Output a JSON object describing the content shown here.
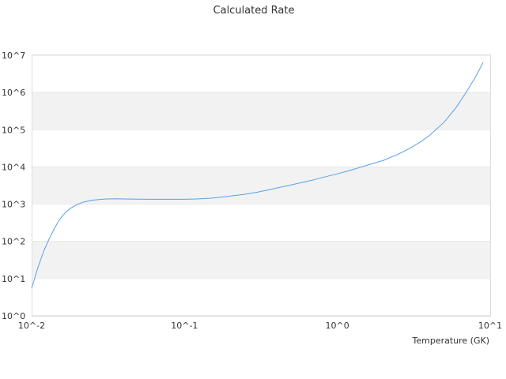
{
  "chart_data": {
    "type": "line",
    "title": "Calculated Rate",
    "xlabel": "Temperature (GK)",
    "ylabel": "",
    "x_scale": "log",
    "y_scale": "log",
    "xlim": [
      0.01,
      10
    ],
    "ylim": [
      1,
      10000000
    ],
    "x_ticks": [
      {
        "value": 0.01,
        "label": "10^-2"
      },
      {
        "value": 0.1,
        "label": "10^-1"
      },
      {
        "value": 1,
        "label": "10^0"
      },
      {
        "value": 10,
        "label": "10^1"
      }
    ],
    "y_ticks": [
      {
        "value": 1,
        "base": "10",
        "exp": "0"
      },
      {
        "value": 10,
        "base": "10",
        "exp": "1"
      },
      {
        "value": 100,
        "base": "10",
        "exp": "2"
      },
      {
        "value": 1000,
        "base": "10",
        "exp": "3"
      },
      {
        "value": 10000,
        "base": "10",
        "exp": "4"
      },
      {
        "value": 100000,
        "base": "10",
        "exp": "5"
      },
      {
        "value": 1000000,
        "base": "10",
        "exp": "6"
      },
      {
        "value": 10000000,
        "base": "10",
        "exp": "7"
      }
    ],
    "grid": "alternating horizontal bands",
    "colors": {
      "line": "#5aa0e6",
      "band": "#f2f2f2",
      "axis": "#cccccc"
    },
    "series": [
      {
        "x": [
          0.01,
          0.011,
          0.012,
          0.013,
          0.014,
          0.015,
          0.016,
          0.017,
          0.018,
          0.02,
          0.022,
          0.025,
          0.03,
          0.035,
          0.04,
          0.045,
          0.05,
          0.06,
          0.07,
          0.08,
          0.1,
          0.12,
          0.15,
          0.2,
          0.25,
          0.3,
          0.4,
          0.5,
          0.6,
          0.7,
          0.8,
          1.0,
          1.2,
          1.5,
          2.0,
          2.5,
          3.0,
          3.5,
          4.0,
          5.0,
          6.0,
          7.0,
          8.0,
          9.0
        ],
        "y": [
          5.5,
          20,
          55,
          115,
          210,
          350,
          500,
          650,
          780,
          1000,
          1150,
          1280,
          1370,
          1390,
          1380,
          1370,
          1360,
          1350,
          1350,
          1350,
          1350,
          1380,
          1450,
          1650,
          1850,
          2100,
          2700,
          3300,
          3900,
          4500,
          5200,
          6500,
          8000,
          10500,
          15000,
          22000,
          32000,
          47000,
          70000,
          160000,
          400000,
          1050000,
          2600000,
          6500000
        ]
      }
    ]
  }
}
